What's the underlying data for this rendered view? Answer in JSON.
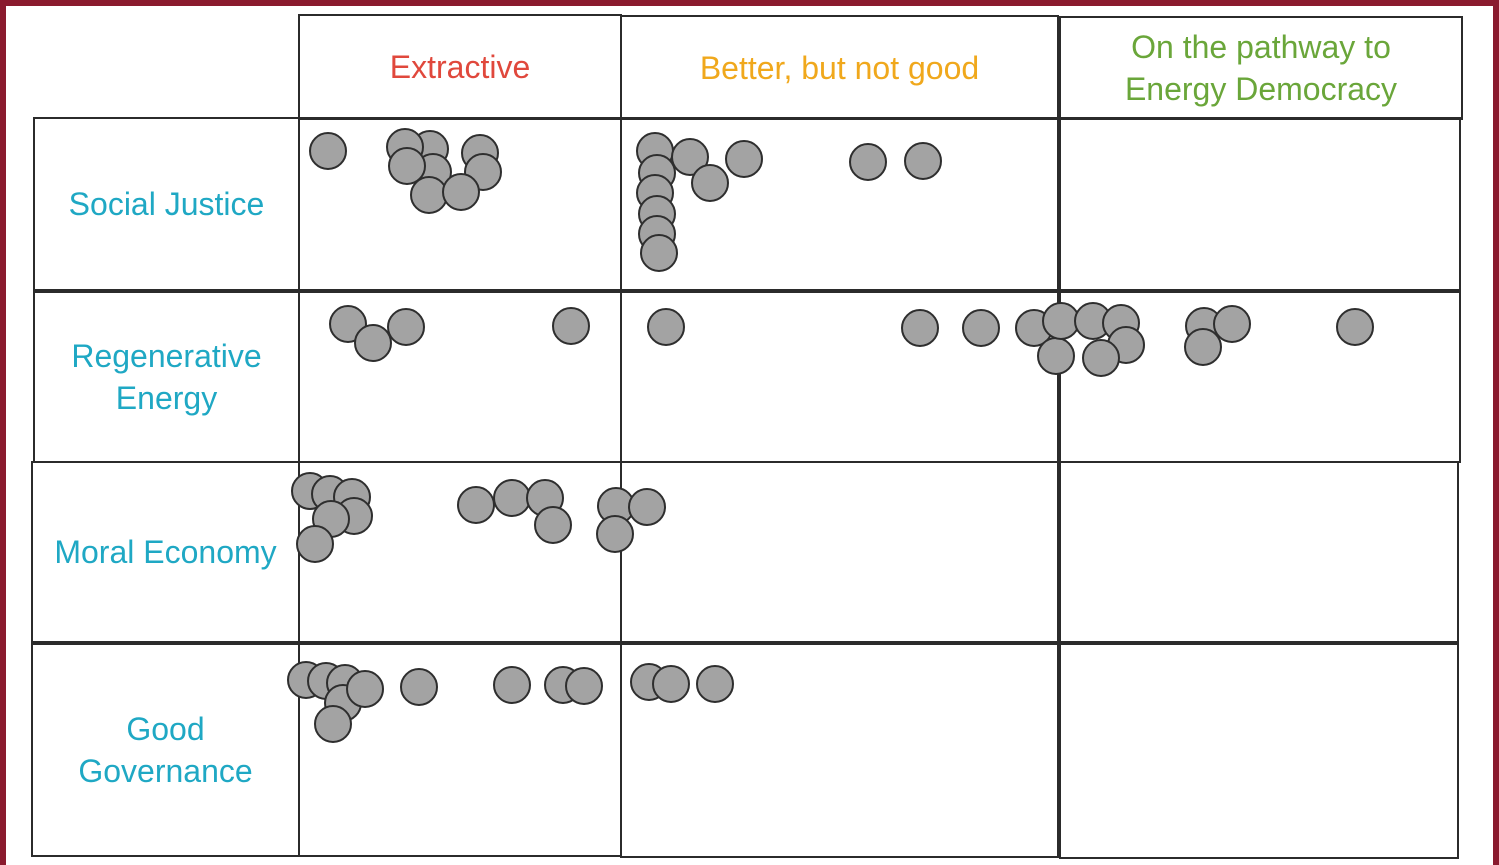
{
  "columns": [
    {
      "label": "Extractive",
      "color": "#e0483c"
    },
    {
      "label": "Better, but not good",
      "color": "#f0a81c"
    },
    {
      "label": "On the pathway to\nEnergy Democracy",
      "color": "#6aa63a"
    }
  ],
  "rows": [
    {
      "label": "Social Justice"
    },
    {
      "label": "Regenerative\nEnergy"
    },
    {
      "label": "Moral Economy"
    },
    {
      "label": "Good\nGovernance"
    }
  ],
  "colors": {
    "background_frame": "#8a1a2e",
    "row_label": "#1fa8c4",
    "dot_fill": "#a3a3a3",
    "dot_outline": "#2e2e2e",
    "grid_line": "#2b2b2b"
  }
}
